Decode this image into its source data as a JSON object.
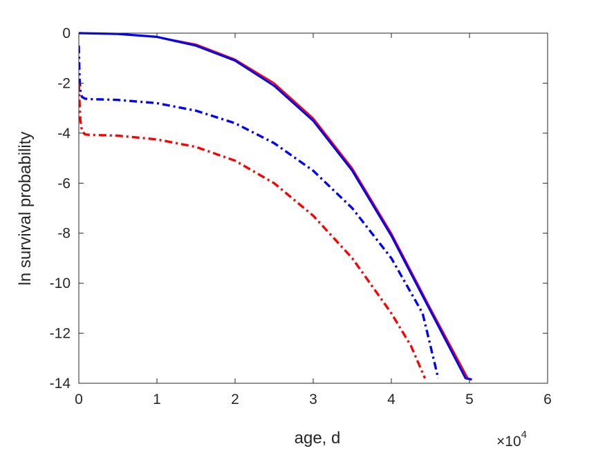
{
  "chart_data": {
    "type": "line",
    "xlabel": "age, d",
    "ylabel": "ln survival probability",
    "x_multiplier_base": "×10",
    "x_multiplier_exp": "4",
    "xlim": [
      0,
      60000
    ],
    "ylim": [
      -14,
      0
    ],
    "xticks": [
      0,
      10000,
      20000,
      30000,
      40000,
      50000,
      60000
    ],
    "xtick_labels": [
      "0",
      "1",
      "2",
      "3",
      "4",
      "5",
      "6"
    ],
    "yticks": [
      0,
      -2,
      -4,
      -6,
      -8,
      -10,
      -12,
      -14
    ],
    "ytick_labels": [
      "0",
      "-2",
      "-4",
      "-6",
      "-8",
      "-10",
      "-12",
      "-14"
    ],
    "grid": false,
    "series": [
      {
        "color": "#ff0000",
        "style": "solid",
        "x": [
          0,
          5000,
          10000,
          15000,
          20000,
          25000,
          30000,
          35000,
          40000,
          45000,
          49800,
          50300
        ],
        "y": [
          0,
          -0.03,
          -0.15,
          -0.45,
          -1.05,
          -2.0,
          -3.4,
          -5.4,
          -8.0,
          -11.0,
          -13.8,
          -13.85
        ]
      },
      {
        "color": "#0000ff",
        "style": "solid",
        "x": [
          0,
          5000,
          10000,
          15000,
          20000,
          25000,
          30000,
          35000,
          40000,
          45000,
          49500,
          50300
        ],
        "y": [
          0,
          -0.03,
          -0.15,
          -0.5,
          -1.1,
          -2.1,
          -3.5,
          -5.5,
          -8.1,
          -11.1,
          -13.8,
          -13.85
        ]
      },
      {
        "color": "#0000ff",
        "style": "dashdot",
        "x": [
          0,
          100,
          200,
          400,
          800,
          1500,
          3000,
          5000,
          10000,
          15000,
          20000,
          25000,
          30000,
          35000,
          40000,
          44000,
          46000
        ],
        "y": [
          -0.5,
          -1.8,
          -2.3,
          -2.55,
          -2.62,
          -2.64,
          -2.65,
          -2.67,
          -2.8,
          -3.1,
          -3.6,
          -4.4,
          -5.5,
          -7.0,
          -9.0,
          -11.2,
          -13.8
        ]
      },
      {
        "color": "#ff0000",
        "style": "dashdot",
        "x": [
          0,
          100,
          200,
          400,
          800,
          1500,
          3000,
          5000,
          10000,
          15000,
          20000,
          25000,
          30000,
          35000,
          40000,
          42500,
          44300
        ],
        "y": [
          -2.0,
          -2.8,
          -3.5,
          -3.9,
          -4.05,
          -4.07,
          -4.08,
          -4.1,
          -4.25,
          -4.55,
          -5.1,
          -6.0,
          -7.3,
          -9.0,
          -11.2,
          -12.5,
          -13.8
        ]
      }
    ]
  }
}
